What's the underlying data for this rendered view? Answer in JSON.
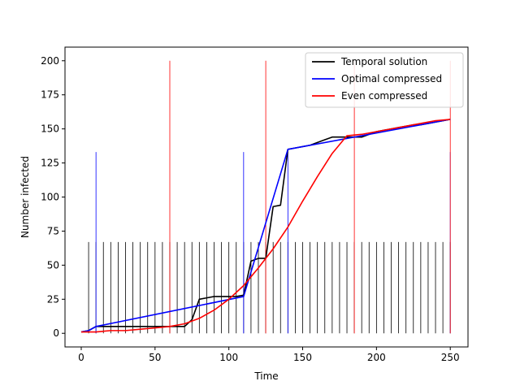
{
  "chart_data": {
    "type": "line",
    "title": "",
    "xlabel": "Time",
    "ylabel": "Number infected",
    "xlim": [
      -11,
      262
    ],
    "ylim": [
      -10,
      210
    ],
    "xticks": [
      0,
      50,
      100,
      150,
      200,
      250
    ],
    "yticks": [
      0,
      25,
      50,
      75,
      100,
      125,
      150,
      175,
      200
    ],
    "grid": false,
    "legend_position": "top-right",
    "series": [
      {
        "name": "Temporal solution",
        "color": "#000000",
        "x": [
          0,
          5,
          10,
          15,
          20,
          25,
          30,
          35,
          40,
          45,
          50,
          55,
          60,
          65,
          70,
          75,
          80,
          85,
          90,
          95,
          100,
          105,
          110,
          115,
          120,
          125,
          130,
          135,
          140,
          145,
          150,
          155,
          160,
          165,
          170,
          175,
          180,
          185,
          190,
          195,
          200,
          205,
          210,
          215,
          220,
          225,
          230,
          235,
          240,
          245,
          250
        ],
        "y": [
          1,
          2,
          5,
          5,
          5,
          5,
          5,
          5,
          5,
          5,
          5,
          5,
          5,
          5,
          5,
          10,
          25,
          26,
          27,
          27,
          27,
          27,
          28,
          53,
          55,
          55,
          93,
          94,
          135,
          136,
          137,
          138,
          140,
          142,
          144,
          144,
          144,
          144,
          144,
          146,
          148,
          149,
          150,
          151,
          152,
          153,
          153,
          154,
          155,
          156,
          157
        ]
      },
      {
        "name": "Optimal compressed",
        "color": "#0000ff",
        "x": [
          0,
          5,
          10,
          110,
          140,
          250
        ],
        "y": [
          1,
          2,
          5,
          27,
          135,
          157
        ]
      },
      {
        "name": "Even compressed",
        "color": "#ff0000",
        "x": [
          0,
          10,
          20,
          30,
          40,
          50,
          60,
          70,
          80,
          90,
          100,
          110,
          120,
          130,
          140,
          150,
          160,
          170,
          180,
          190,
          200,
          210,
          220,
          230,
          240,
          250
        ],
        "y": [
          1,
          1,
          2,
          2,
          3,
          4,
          5,
          7,
          11,
          17,
          25,
          35,
          48,
          62,
          78,
          97,
          115,
          132,
          145,
          146,
          148,
          150,
          152,
          154,
          156,
          157
        ]
      }
    ],
    "event_markers": [
      {
        "series": "Temporal solution",
        "color": "#000000",
        "height": 67,
        "x": [
          5,
          10,
          15,
          20,
          25,
          30,
          35,
          40,
          45,
          50,
          55,
          60,
          65,
          70,
          75,
          80,
          85,
          90,
          95,
          100,
          105,
          110,
          115,
          120,
          125,
          130,
          135,
          140,
          145,
          150,
          155,
          160,
          165,
          170,
          175,
          180,
          185,
          190,
          195,
          200,
          205,
          210,
          215,
          220,
          225,
          230,
          235,
          240,
          245,
          250
        ]
      },
      {
        "series": "Optimal compressed",
        "color": "#0000ff",
        "height": 133,
        "x": [
          10,
          110,
          140,
          250
        ]
      },
      {
        "series": "Even compressed",
        "color": "#ff0000",
        "height": 200,
        "x": [
          60,
          125,
          185,
          250
        ]
      }
    ]
  }
}
